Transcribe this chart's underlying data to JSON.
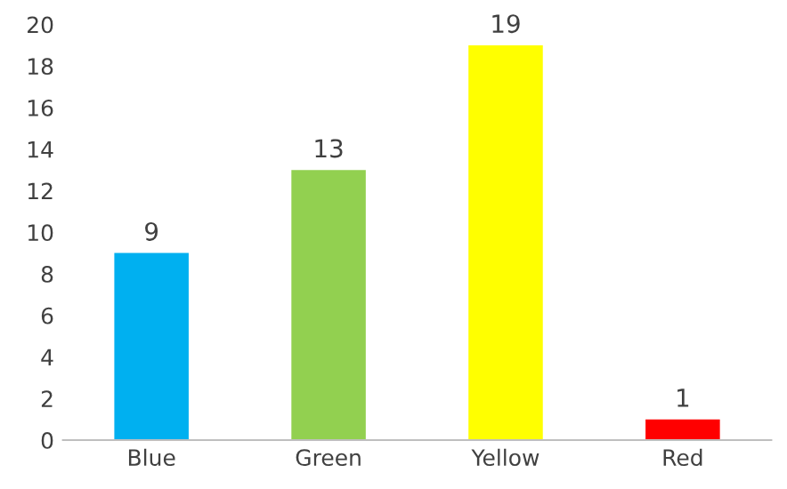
{
  "chart_data": {
    "type": "bar",
    "categories": [
      "Blue",
      "Green",
      "Yellow",
      "Red"
    ],
    "values": [
      9,
      13,
      19,
      1
    ],
    "colors": [
      "#00b0f0",
      "#92d050",
      "#ffff00",
      "#ff0000"
    ],
    "ylim": [
      0,
      20
    ],
    "yticks": [
      0,
      2,
      4,
      6,
      8,
      10,
      12,
      14,
      16,
      18,
      20
    ],
    "data_labels": true,
    "grid": false,
    "legend": false
  }
}
